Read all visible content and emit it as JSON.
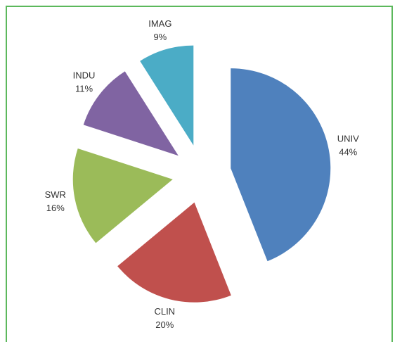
{
  "chart_data": {
    "type": "pie",
    "categories": [
      "UNIV",
      "CLIN",
      "SWR",
      "INDU",
      "IMAG"
    ],
    "values": [
      44,
      20,
      16,
      11,
      9
    ],
    "value_labels": [
      "44%",
      "20%",
      "16%",
      "11%",
      "9%"
    ],
    "colors": [
      "#4f81bd",
      "#c0504d",
      "#9bbb59",
      "#8064a2",
      "#4bacc6"
    ],
    "exploded": true
  }
}
